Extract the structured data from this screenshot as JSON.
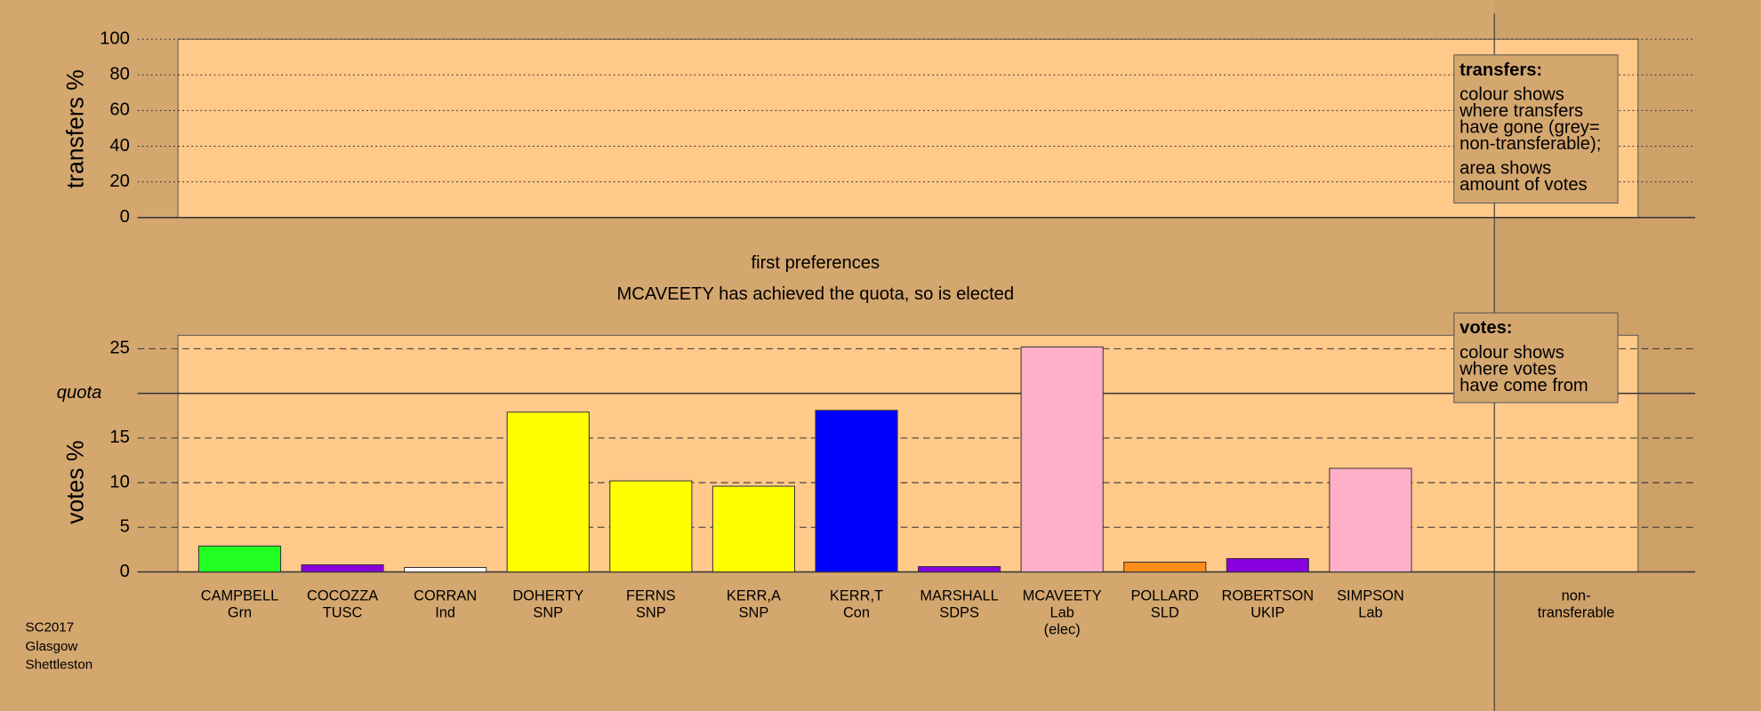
{
  "chart_data": [
    {
      "type": "bar",
      "y_label": "transfers %",
      "ylim": [
        0,
        100
      ],
      "yticks": [
        0,
        20,
        40,
        60,
        80,
        100
      ],
      "grid": "dotted",
      "legend": {
        "title": "transfers:",
        "paragraphs": [
          [
            "colour shows",
            "where transfers",
            "have gone (grey=",
            "non-transferable);"
          ],
          [
            "area shows",
            "amount of votes"
          ]
        ]
      }
    },
    {
      "type": "bar",
      "title": "first preferences",
      "subtitle": "MCAVEETY has achieved the quota, so is elected",
      "y_label": "votes %",
      "ylim": [
        0,
        26.5
      ],
      "yticks": [
        0,
        5,
        10,
        15,
        {
          "value": 20,
          "label": "quota"
        },
        25
      ],
      "grid": "dashed",
      "categories": [
        [
          "CAMPBELL",
          "Grn"
        ],
        [
          "COCOZZA",
          "TUSC"
        ],
        [
          "CORRAN",
          "Ind"
        ],
        [
          "DOHERTY",
          "SNP"
        ],
        [
          "FERNS",
          "SNP"
        ],
        [
          "KERR,A",
          "SNP"
        ],
        [
          "KERR,T",
          "Con"
        ],
        [
          "MARSHALL",
          "SDPS"
        ],
        [
          "MCAVEETY",
          "Lab",
          "(elec)"
        ],
        [
          "POLLARD",
          "SLD"
        ],
        [
          "ROBERTSON",
          "UKIP"
        ],
        [
          "SIMPSON",
          "Lab"
        ],
        null,
        [
          "non-",
          "transferable"
        ]
      ],
      "values": [
        2.9,
        0.8,
        0.5,
        17.9,
        10.2,
        9.6,
        18.1,
        0.6,
        25.2,
        1.1,
        1.5,
        11.6,
        null,
        null
      ],
      "colors": [
        "#22ff22",
        "#8800dd",
        "#ffffff",
        "#ffff00",
        "#ffff00",
        "#ffff00",
        "#0000ff",
        "#8800dd",
        "#ffb0c8",
        "#ff8c1a",
        "#8800dd",
        "#ffb0c8",
        null,
        null
      ],
      "legend": {
        "title": "votes:",
        "paragraphs": [
          [
            "colour shows",
            "where votes",
            "have come from"
          ]
        ]
      }
    }
  ],
  "footer": [
    "SC2017",
    "Glasgow",
    "Shettleston"
  ]
}
